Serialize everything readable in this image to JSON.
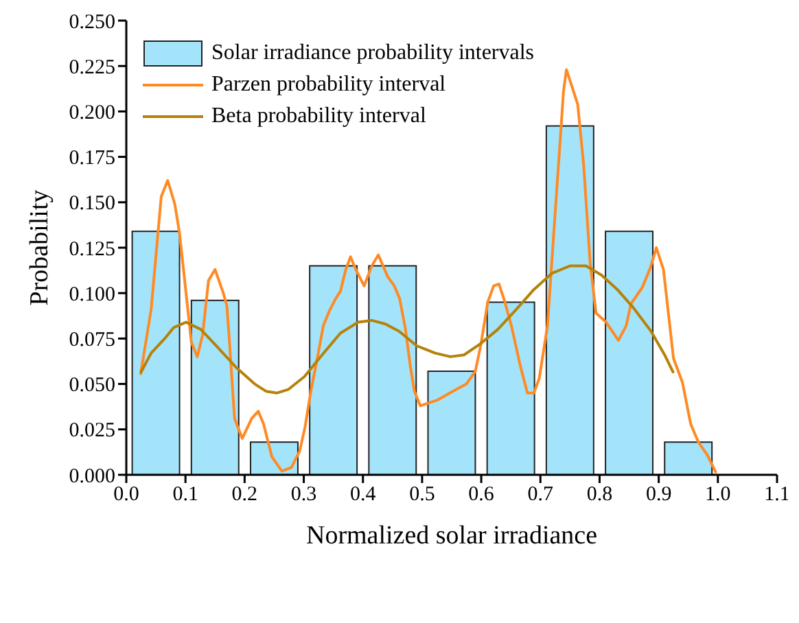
{
  "chart_data": {
    "type": "bar",
    "xlabel": "Normalized solar irradiance",
    "ylabel": "Probability",
    "xlim": [
      0,
      1.1
    ],
    "xticks": [
      {
        "value": 0,
        "label": "0.0"
      },
      0.1,
      0.2,
      0.3,
      0.4,
      0.5,
      0.6,
      0.7,
      0.8,
      0.9,
      {
        "value": 1,
        "label": "1.0"
      },
      1.1
    ],
    "ylim": [
      0,
      0.25
    ],
    "yticks": [
      {
        "value": 0,
        "label": "0.000"
      },
      {
        "value": 0.025,
        "label": "0.025"
      },
      {
        "value": 0.05,
        "label": "0.050"
      },
      {
        "value": 0.075,
        "label": "0.075"
      },
      {
        "value": 0.1,
        "label": "0.100"
      },
      {
        "value": 0.125,
        "label": "0.125"
      },
      {
        "value": 0.15,
        "label": "0.150"
      },
      {
        "value": 0.175,
        "label": "0.175"
      },
      {
        "value": 0.2,
        "label": "0.200"
      },
      {
        "value": 0.225,
        "label": "0.225"
      },
      {
        "value": 0.25,
        "label": "0.250"
      }
    ],
    "grid": false,
    "legend": "top left",
    "series": [
      {
        "name": "Solar irradiance probability intervals",
        "color": "#a4e4fb",
        "x": [
          0.05,
          0.15,
          0.25,
          0.35,
          0.45,
          0.55,
          0.65,
          0.75,
          0.85,
          0.95
        ],
        "values": [
          0.134,
          0.096,
          0.018,
          0.115,
          0.115,
          0.057,
          0.095,
          0.192,
          0.134,
          0.018
        ]
      },
      {
        "type": "line",
        "name": "Parzen probability interval",
        "color": "#ff8a24",
        "x": [
          0.024,
          0.042,
          0.059,
          0.07,
          0.082,
          0.09,
          0.11,
          0.12,
          0.129,
          0.139,
          0.15,
          0.164,
          0.17,
          0.174,
          0.183,
          0.196,
          0.212,
          0.223,
          0.232,
          0.246,
          0.263,
          0.279,
          0.293,
          0.302,
          0.312,
          0.324,
          0.333,
          0.343,
          0.354,
          0.362,
          0.371,
          0.379,
          0.388,
          0.402,
          0.415,
          0.426,
          0.442,
          0.453,
          0.462,
          0.472,
          0.48,
          0.487,
          0.497,
          0.525,
          0.552,
          0.575,
          0.59,
          0.599,
          0.611,
          0.621,
          0.63,
          0.64,
          0.651,
          0.666,
          0.678,
          0.689,
          0.698,
          0.712,
          0.723,
          0.733,
          0.739,
          0.744,
          0.754,
          0.763,
          0.773,
          0.784,
          0.794,
          0.811,
          0.832,
          0.845,
          0.853,
          0.872,
          0.886,
          0.896,
          0.908,
          0.925,
          0.94,
          0.954,
          0.967,
          0.982,
          0.997
        ],
        "values": [
          0.055,
          0.091,
          0.153,
          0.162,
          0.149,
          0.133,
          0.073,
          0.065,
          0.077,
          0.107,
          0.113,
          0.1,
          0.093,
          0.075,
          0.031,
          0.02,
          0.031,
          0.035,
          0.028,
          0.01,
          0.002,
          0.004,
          0.013,
          0.026,
          0.046,
          0.066,
          0.082,
          0.09,
          0.097,
          0.101,
          0.113,
          0.12,
          0.113,
          0.104,
          0.115,
          0.121,
          0.109,
          0.104,
          0.097,
          0.08,
          0.06,
          0.046,
          0.038,
          0.041,
          0.046,
          0.05,
          0.057,
          0.071,
          0.095,
          0.104,
          0.105,
          0.095,
          0.082,
          0.06,
          0.045,
          0.045,
          0.053,
          0.082,
          0.135,
          0.182,
          0.211,
          0.223,
          0.213,
          0.204,
          0.171,
          0.117,
          0.089,
          0.084,
          0.074,
          0.082,
          0.094,
          0.103,
          0.114,
          0.125,
          0.113,
          0.064,
          0.051,
          0.028,
          0.018,
          0.011,
          0.001
        ]
      },
      {
        "type": "line",
        "name": "Beta probability interval",
        "color": "#b5820a",
        "x": [
          0.024,
          0.042,
          0.065,
          0.08,
          0.101,
          0.126,
          0.152,
          0.186,
          0.217,
          0.236,
          0.254,
          0.274,
          0.301,
          0.331,
          0.362,
          0.392,
          0.415,
          0.438,
          0.461,
          0.491,
          0.522,
          0.548,
          0.571,
          0.598,
          0.628,
          0.659,
          0.689,
          0.72,
          0.75,
          0.777,
          0.803,
          0.83,
          0.857,
          0.887,
          0.91,
          0.925
        ],
        "values": [
          0.056,
          0.067,
          0.075,
          0.081,
          0.084,
          0.08,
          0.071,
          0.059,
          0.05,
          0.046,
          0.045,
          0.047,
          0.054,
          0.066,
          0.078,
          0.084,
          0.085,
          0.083,
          0.079,
          0.071,
          0.067,
          0.065,
          0.066,
          0.072,
          0.08,
          0.091,
          0.102,
          0.111,
          0.115,
          0.115,
          0.11,
          0.102,
          0.092,
          0.079,
          0.066,
          0.056
        ]
      }
    ]
  }
}
